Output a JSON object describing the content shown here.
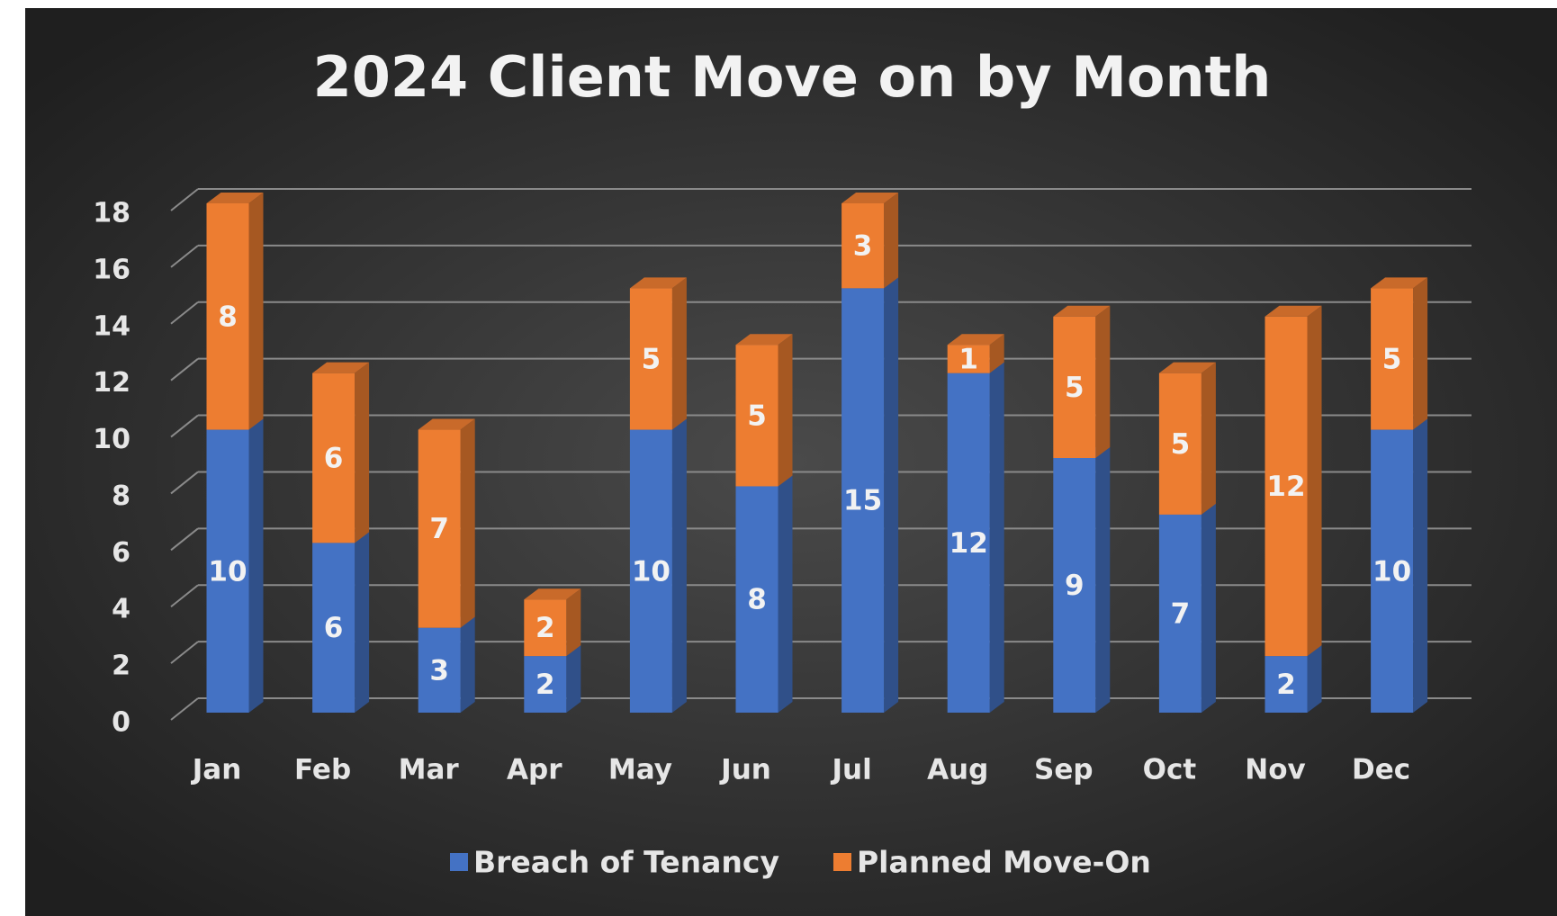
{
  "chart_data": {
    "type": "bar",
    "stacked": true,
    "title": "2024 Client Move on by Month",
    "categories": [
      "Jan",
      "Feb",
      "Mar",
      "Apr",
      "May",
      "Jun",
      "Jul",
      "Aug",
      "Sep",
      "Oct",
      "Nov",
      "Dec"
    ],
    "series": [
      {
        "name": "Breach of Tenancy",
        "color": "#4472c4",
        "values": [
          10,
          6,
          3,
          2,
          10,
          8,
          15,
          12,
          9,
          7,
          2,
          10
        ]
      },
      {
        "name": "Planned Move-On",
        "color": "#ed7d31",
        "values": [
          8,
          6,
          7,
          2,
          5,
          5,
          3,
          1,
          5,
          5,
          12,
          5
        ]
      }
    ],
    "ylim": [
      0,
      18
    ],
    "yticks": [
      0,
      2,
      4,
      6,
      8,
      10,
      12,
      14,
      16,
      18
    ],
    "grid": true,
    "legend": "bottom"
  }
}
